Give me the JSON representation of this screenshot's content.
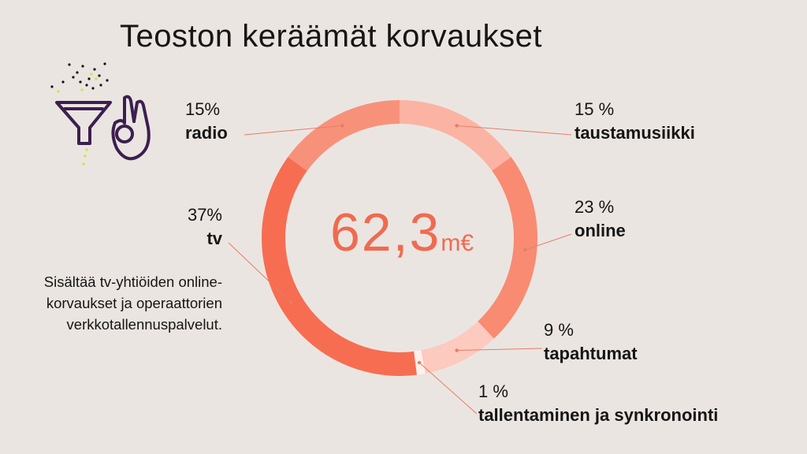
{
  "title": "Teoston keräämät korvaukset",
  "center": {
    "value": "62,3",
    "unit": "m€"
  },
  "note": "Sisältää tv-yhtiöiden online-korvaukset ja operaattorien verkkotallennuspalvelut.",
  "colors": {
    "background": "#ebe5e1",
    "icon": "#3b1f50",
    "icon_dots_accent": "#d4e157"
  },
  "chart_data": {
    "type": "pie",
    "variant": "donut",
    "title": "Teoston keräämät korvaukset",
    "total_label": "62,3m€",
    "start": "top",
    "direction": "clockwise",
    "slices": [
      {
        "name": "taustamusiikki",
        "label": "15 %",
        "value": 15,
        "color": "#fbb3a3"
      },
      {
        "name": "online",
        "label": "23 %",
        "value": 23,
        "color": "#f88b72"
      },
      {
        "name": "tapahtumat",
        "label": "9 %",
        "value": 9,
        "color": "#fccabe"
      },
      {
        "name": "tallentaminen ja synkronointi",
        "label": "1 %",
        "value": 1,
        "color": "#fdf1ec"
      },
      {
        "name": "tv",
        "label": "37%",
        "value": 37,
        "color": "#f66d52"
      },
      {
        "name": "radio",
        "label": "15%",
        "value": 15,
        "color": "#f8917a"
      }
    ]
  }
}
